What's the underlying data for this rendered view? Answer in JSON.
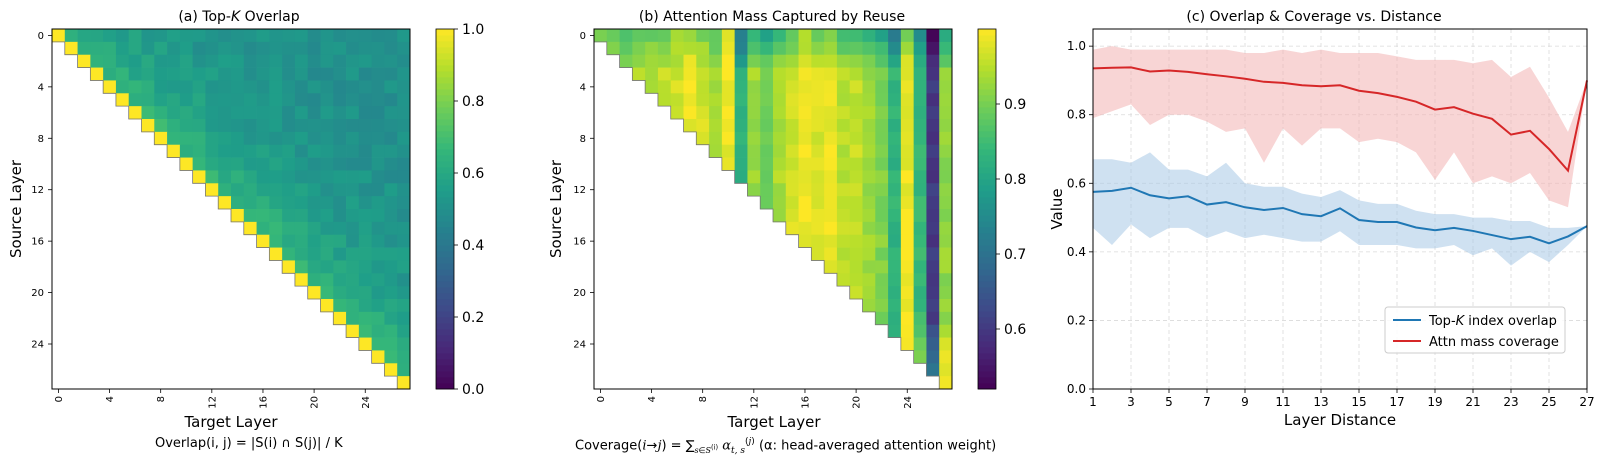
{
  "chart_data": [
    {
      "type": "heatmap",
      "title": "(a) Top-K Overlap",
      "title_parts": [
        "(a) Top-",
        "K",
        " Overlap"
      ],
      "xlabel": "Target Layer",
      "ylabel": "Source Layer",
      "n_layers": 28,
      "x_ticks": [
        0,
        4,
        8,
        12,
        16,
        20,
        24
      ],
      "y_ticks": [
        0,
        4,
        8,
        12,
        16,
        20,
        24
      ],
      "colormap": "viridis",
      "clim": [
        0.0,
        1.0
      ],
      "colorbar_ticks": [
        "0.0",
        "0.2",
        "0.4",
        "0.6",
        "0.8",
        "1.0"
      ],
      "colorbar_tick_values": [
        0.0,
        0.2,
        0.4,
        0.6,
        0.8,
        1.0
      ],
      "triangle": "upper",
      "diagonal_value": 1.0,
      "near_diag_value": 0.66,
      "far_value": 0.5,
      "decay_scale": 5.0,
      "footnote": "Overlap(i, j) = |S(i) ∩ S(j)| / K"
    },
    {
      "type": "heatmap",
      "title": "(b) Attention Mass Captured by Reuse",
      "xlabel": "Target Layer",
      "ylabel": "Source Layer",
      "n_layers": 28,
      "x_ticks": [
        0,
        4,
        8,
        12,
        16,
        20,
        24
      ],
      "y_ticks": [
        0,
        4,
        8,
        12,
        16,
        20,
        24
      ],
      "colormap": "viridis",
      "clim": [
        0.52,
        1.0
      ],
      "colorbar_ticks": [
        "0.6",
        "0.7",
        "0.8",
        "0.9"
      ],
      "colorbar_tick_values": [
        0.6,
        0.7,
        0.8,
        0.9
      ],
      "triangle": "upper",
      "column_values": [
        0.9,
        0.9,
        0.92,
        0.94,
        0.95,
        0.96,
        0.97,
        0.99,
        0.97,
        0.94,
        0.99,
        0.82,
        0.93,
        0.9,
        0.94,
        0.97,
        0.99,
        0.97,
        0.99,
        0.95,
        0.96,
        0.93,
        0.91,
        0.83,
        0.99,
        0.84,
        0.6,
        0.92
      ],
      "column_values_row0": [
        0.92,
        0.9,
        0.88,
        0.89,
        0.89,
        0.9,
        0.92,
        0.94,
        0.9,
        0.87,
        0.97,
        0.72,
        0.84,
        0.8,
        0.84,
        0.88,
        0.93,
        0.88,
        0.9,
        0.84,
        0.86,
        0.82,
        0.8,
        0.72,
        0.9,
        0.76,
        0.53,
        0.8
      ],
      "footnote_text": "(α: head-averaged attention weight)"
    },
    {
      "type": "line",
      "title": "(c) Overlap & Coverage vs. Distance",
      "xlabel": "Layer Distance",
      "ylabel": "Value",
      "xlim": [
        1,
        27
      ],
      "ylim": [
        0.0,
        1.05
      ],
      "x_ticks": [
        1,
        3,
        5,
        7,
        9,
        11,
        13,
        15,
        17,
        19,
        21,
        23,
        25,
        27
      ],
      "y_ticks": [
        0.0,
        0.2,
        0.4,
        0.6,
        0.8,
        1.0
      ],
      "y_tick_labels": [
        "0.0",
        "0.2",
        "0.4",
        "0.6",
        "0.8",
        "1.0"
      ],
      "grid": true,
      "legend_position": "lower-right",
      "x": [
        1,
        2,
        3,
        4,
        5,
        6,
        7,
        8,
        9,
        10,
        11,
        12,
        13,
        14,
        15,
        16,
        17,
        18,
        19,
        20,
        21,
        22,
        23,
        24,
        25,
        26,
        27
      ],
      "series": [
        {
          "name": "Top-K index overlap",
          "name_parts": [
            "Top-",
            "K",
            " index overlap"
          ],
          "color": "#1f77b4",
          "band_color": "#a8c8e5",
          "values": [
            0.575,
            0.578,
            0.587,
            0.565,
            0.556,
            0.562,
            0.538,
            0.545,
            0.53,
            0.522,
            0.528,
            0.51,
            0.504,
            0.527,
            0.493,
            0.487,
            0.487,
            0.471,
            0.463,
            0.47,
            0.461,
            0.449,
            0.437,
            0.444,
            0.425,
            0.445,
            0.475
          ],
          "upper": [
            0.67,
            0.67,
            0.66,
            0.69,
            0.64,
            0.64,
            0.62,
            0.66,
            0.6,
            0.59,
            0.59,
            0.57,
            0.56,
            0.58,
            0.55,
            0.54,
            0.54,
            0.52,
            0.51,
            0.51,
            0.5,
            0.5,
            0.49,
            0.49,
            0.47,
            0.47,
            0.475
          ],
          "lower": [
            0.47,
            0.42,
            0.48,
            0.44,
            0.47,
            0.47,
            0.44,
            0.46,
            0.44,
            0.45,
            0.44,
            0.43,
            0.43,
            0.46,
            0.42,
            0.42,
            0.42,
            0.41,
            0.41,
            0.42,
            0.39,
            0.41,
            0.36,
            0.4,
            0.37,
            0.42,
            0.475
          ]
        },
        {
          "name": "Attn mass coverage",
          "color": "#d62728",
          "band_color": "#f3b3b3",
          "values": [
            0.935,
            0.937,
            0.938,
            0.926,
            0.929,
            0.925,
            0.918,
            0.912,
            0.905,
            0.896,
            0.893,
            0.886,
            0.883,
            0.886,
            0.87,
            0.863,
            0.852,
            0.838,
            0.815,
            0.822,
            0.803,
            0.788,
            0.742,
            0.753,
            0.7,
            0.637,
            0.9
          ],
          "upper": [
            0.99,
            1.0,
            0.99,
            0.99,
            0.99,
            0.99,
            0.99,
            0.99,
            0.98,
            0.98,
            0.99,
            0.98,
            0.99,
            0.98,
            0.98,
            0.98,
            0.97,
            0.96,
            0.96,
            0.96,
            0.95,
            0.96,
            0.91,
            0.94,
            0.85,
            0.75,
            0.9
          ],
          "lower": [
            0.79,
            0.81,
            0.83,
            0.77,
            0.8,
            0.8,
            0.78,
            0.75,
            0.76,
            0.66,
            0.76,
            0.71,
            0.76,
            0.76,
            0.72,
            0.73,
            0.72,
            0.69,
            0.61,
            0.69,
            0.6,
            0.62,
            0.6,
            0.63,
            0.55,
            0.53,
            0.9
          ]
        }
      ]
    }
  ]
}
